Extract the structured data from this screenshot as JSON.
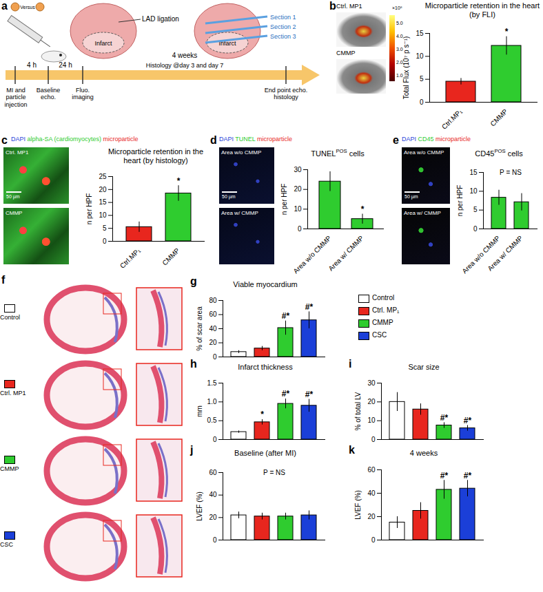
{
  "schematic": {
    "panel": "a",
    "versus": "Versus",
    "lad_label": "LAD ligation",
    "infarct_label": "Infarct",
    "sections": [
      "Section 1",
      "Section 2",
      "Section 3"
    ],
    "intervals": [
      "4 h",
      "24 h",
      "4 weeks"
    ],
    "histology_note": "Histology @day 3 and day 7",
    "events": [
      "MI and particle injection",
      "Baseline echo.",
      "Fluo. imaging",
      "End point echo. histology"
    ]
  },
  "images": [
    {
      "panel": "b",
      "labels": [
        "Ctrl. MP1",
        "CMMP"
      ],
      "colorbar": {
        "range": [
          0.6,
          5.6
        ],
        "ticks": [
          {
            "value": 1,
            "label": "1.0"
          },
          {
            "value": 2,
            "label": "2.0"
          },
          {
            "value": 3,
            "label": "3.0"
          },
          {
            "value": 4,
            "label": "4.0"
          },
          {
            "value": 5,
            "label": "5.0"
          }
        ],
        "unit": "×10⁸"
      }
    },
    {
      "panel": "c",
      "stain": [
        {
          "text": "DAPI",
          "color": "#1f3fd8"
        },
        {
          "text": "alpha-SA (cardiomyocytes)",
          "color": "#2fcc2f"
        },
        {
          "text": "microparticle",
          "color": "#e8261e"
        }
      ],
      "labels": [
        "Ctrl. MP1",
        "CMMP"
      ],
      "scale_bar": "50 µm"
    },
    {
      "panel": "d",
      "stain": [
        {
          "text": "DAPI",
          "color": "#1f3fd8"
        },
        {
          "text": "TUNEL",
          "color": "#2fcc2f"
        },
        {
          "text": "microparticle",
          "color": "#e8261e"
        }
      ],
      "labels": [
        "Area w/o CMMP",
        "Area w/ CMMP"
      ],
      "scale_bar": "50 µm"
    },
    {
      "panel": "e",
      "stain": [
        {
          "text": "DAPI",
          "color": "#1f3fd8"
        },
        {
          "text": "CD45",
          "color": "#2fcc2f"
        },
        {
          "text": "microparticle",
          "color": "#e8261e"
        }
      ],
      "labels": [
        "Area w/o CMMP",
        "Area w/ CMMP"
      ],
      "scale_bar": "50 µm"
    }
  ],
  "histology": {
    "panel": "f",
    "groups": [
      {
        "name": "Control",
        "color": "#ffffff"
      },
      {
        "name": "Ctrl. MP1",
        "color": "#e8261e"
      },
      {
        "name": "CMMP",
        "color": "#2fcc2f"
      },
      {
        "name": "CSC",
        "color": "#1b3fd8"
      }
    ]
  },
  "legend": {
    "entries": [
      {
        "name": "Control",
        "color": "#ffffff"
      },
      {
        "name": "Ctrl. MP₁",
        "color": "#e8261e"
      },
      {
        "name": "CMMP",
        "color": "#2fcc2f"
      },
      {
        "name": "CSC",
        "color": "#1b3fd8"
      }
    ]
  },
  "chart_data": [
    {
      "panel": "b",
      "type": "bar",
      "title": "Microparticle retention in the heart (by FLI)",
      "categories": [
        "Ctrl.MP₁",
        "CMMP"
      ],
      "values": [
        4.5,
        12.3
      ],
      "errors": [
        0.7,
        2.0
      ],
      "colors": [
        "#e8261e",
        "#2fcc2f"
      ],
      "ylabel": "Total Flux (10⁷ p s⁻¹)",
      "ylim": [
        0,
        15
      ],
      "yticks": [
        0,
        5,
        10,
        15
      ],
      "bar_annotations": [
        null,
        "*"
      ]
    },
    {
      "panel": "c",
      "type": "bar",
      "title": "Microparticle retention in the heart (by histology)",
      "categories": [
        "Ctrl.MP₁",
        "CMMP"
      ],
      "values": [
        5.5,
        18.5
      ],
      "errors": [
        2.0,
        3.0
      ],
      "colors": [
        "#e8261e",
        "#2fcc2f"
      ],
      "ylabel": "n per HPF",
      "ylim": [
        0,
        25
      ],
      "yticks": [
        0,
        5,
        10,
        15,
        20,
        25
      ],
      "bar_annotations": [
        null,
        "*"
      ]
    },
    {
      "panel": "d",
      "type": "bar",
      "title": "TUNELPOS cells",
      "title_sup": "POS",
      "categories": [
        "Area w/o CMMP",
        "Area w/ CMMP"
      ],
      "values": [
        24,
        5
      ],
      "errors": [
        5,
        2.5
      ],
      "colors": [
        "#2fcc2f",
        "#2fcc2f"
      ],
      "ylabel": "n per HPF",
      "ylim": [
        0,
        30
      ],
      "yticks": [
        0,
        10,
        20,
        30
      ],
      "bar_annotations": [
        null,
        "*"
      ]
    },
    {
      "panel": "e",
      "type": "bar",
      "title": "CD45POS cells",
      "title_sup": "POS",
      "annotation": "P = NS",
      "categories": [
        "Area w/o CMMP",
        "Area w/ CMMP"
      ],
      "values": [
        8.3,
        7.1
      ],
      "errors": [
        2.0,
        2.3
      ],
      "colors": [
        "#2fcc2f",
        "#2fcc2f"
      ],
      "ylabel": "n per HPF",
      "ylim": [
        0,
        15
      ],
      "yticks": [
        0,
        5,
        10,
        15
      ]
    },
    {
      "panel": "g",
      "type": "bar",
      "title": "Viable myocardium",
      "tick_labels": "y",
      "categories": [
        "Control",
        "Ctrl. MP₁",
        "CMMP",
        "CSC"
      ],
      "values": [
        7,
        12,
        41,
        52
      ],
      "errors": [
        2,
        3,
        10,
        12
      ],
      "colors": [
        "#ffffff",
        "#e8261e",
        "#2fcc2f",
        "#1b3fd8"
      ],
      "ylabel": "% of scar area",
      "ylim": [
        0,
        80
      ],
      "yticks": [
        0,
        20,
        40,
        60,
        80
      ],
      "bar_annotations": [
        null,
        null,
        "#*",
        "#*"
      ]
    },
    {
      "panel": "h",
      "type": "bar",
      "title": "Infarct thickness",
      "tick_labels": "y",
      "categories": [
        "Control",
        "Ctrl. MP₁",
        "CMMP",
        "CSC"
      ],
      "values": [
        0.2,
        0.46,
        0.95,
        0.9
      ],
      "errors": [
        0.03,
        0.07,
        0.13,
        0.17
      ],
      "colors": [
        "#ffffff",
        "#e8261e",
        "#2fcc2f",
        "#1b3fd8"
      ],
      "ylabel": "mm",
      "ylim": [
        0,
        1.5
      ],
      "yticks": [
        0,
        0.5,
        {
          "value": 1,
          "label": "1.0"
        },
        1.5
      ],
      "bar_annotations": [
        null,
        "*",
        "#*",
        "#*"
      ]
    },
    {
      "panel": "i",
      "type": "bar",
      "title": "Scar size",
      "tick_labels": "y",
      "categories": [
        "Control",
        "Ctrl. MP₁",
        "CMMP",
        "CSC"
      ],
      "values": [
        20,
        16,
        7.5,
        6
      ],
      "errors": [
        5,
        3,
        1.5,
        1.5
      ],
      "colors": [
        "#ffffff",
        "#e8261e",
        "#2fcc2f",
        "#1b3fd8"
      ],
      "ylabel": "% of total LV",
      "ylim": [
        0,
        30
      ],
      "yticks": [
        0,
        10,
        20,
        30
      ],
      "bar_annotations": [
        null,
        null,
        "#*",
        "#*"
      ]
    },
    {
      "panel": "j",
      "type": "bar",
      "title": "Baseline (after MI)",
      "annotation": "P = NS",
      "tick_labels": "y",
      "categories": [
        "Control",
        "Ctrl. MP₁",
        "CMMP",
        "CSC"
      ],
      "values": [
        22,
        21,
        21,
        22
      ],
      "errors": [
        3,
        3,
        3,
        4
      ],
      "colors": [
        "#ffffff",
        "#e8261e",
        "#2fcc2f",
        "#1b3fd8"
      ],
      "ylabel": "LVEF (%)",
      "ylim": [
        0,
        60
      ],
      "yticks": [
        0,
        20,
        40,
        60
      ]
    },
    {
      "panel": "k",
      "type": "bar",
      "title": "4 weeks",
      "tick_labels": "y",
      "categories": [
        "Control",
        "Ctrl. MP₁",
        "CMMP",
        "CSC"
      ],
      "values": [
        15,
        25,
        43,
        44
      ],
      "errors": [
        5,
        7,
        8,
        7
      ],
      "colors": [
        "#ffffff",
        "#e8261e",
        "#2fcc2f",
        "#1b3fd8"
      ],
      "ylabel": "LVEF (%)",
      "ylim": [
        0,
        60
      ],
      "yticks": [
        0,
        20,
        40,
        60
      ],
      "bar_annotations": [
        null,
        null,
        "#*",
        "#*"
      ]
    }
  ]
}
